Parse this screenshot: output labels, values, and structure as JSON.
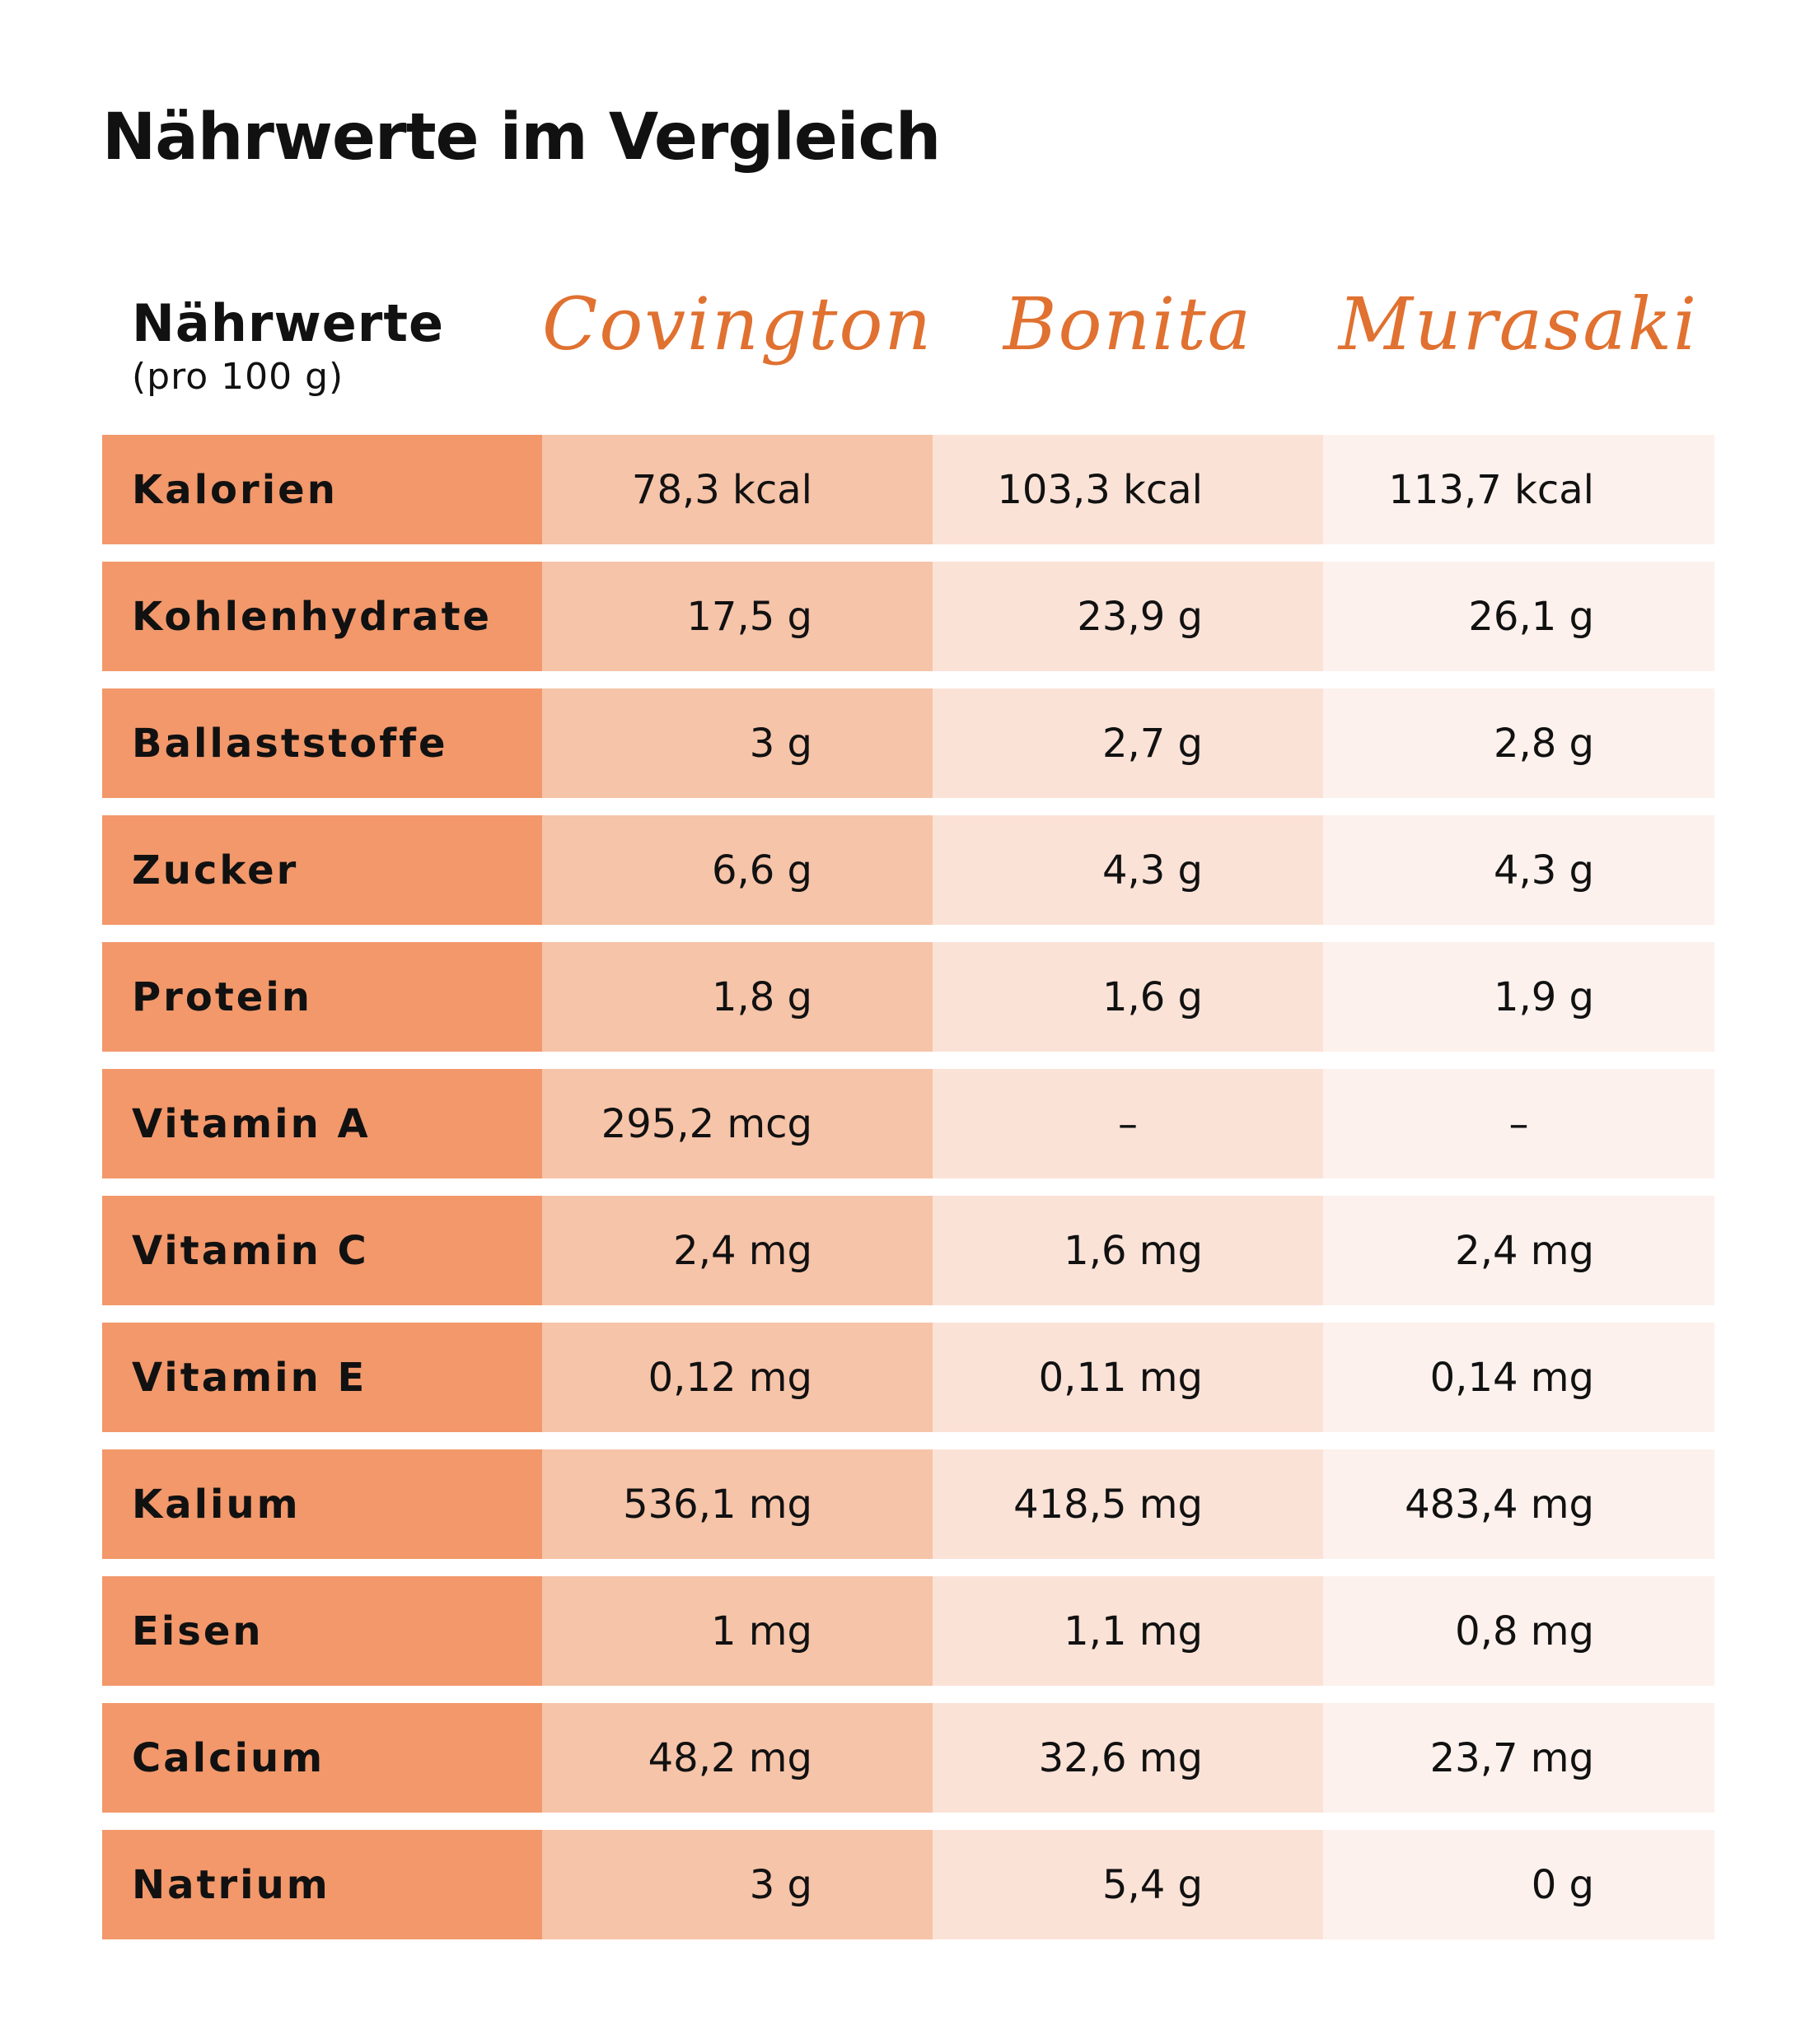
{
  "title": "Nährwerte im Vergleich",
  "header": {
    "label": "Nährwerte",
    "sublabel": "(pro 100 g)",
    "varieties": [
      "Covington",
      "Bonita",
      "Murasaki"
    ]
  },
  "rows": [
    {
      "name": "Kalorien",
      "values": [
        "78,3 kcal",
        "103,3 kcal",
        "113,7 kcal"
      ]
    },
    {
      "name": "Kohlenhydrate",
      "values": [
        "17,5 g",
        "23,9 g",
        "26,1 g"
      ]
    },
    {
      "name": "Ballaststoffe",
      "values": [
        "3 g",
        "2,7 g",
        "2,8 g"
      ]
    },
    {
      "name": "Zucker",
      "values": [
        "6,6 g",
        "4,3 g",
        "4,3 g"
      ]
    },
    {
      "name": "Protein",
      "values": [
        "1,8 g",
        "1,6 g",
        "1,9 g"
      ]
    },
    {
      "name": "Vitamin A",
      "values": [
        "295,2 mcg",
        "–",
        "–"
      ]
    },
    {
      "name": "Vitamin C",
      "values": [
        "2,4 mg",
        "1,6 mg",
        "2,4 mg"
      ]
    },
    {
      "name": "Vitamin E",
      "values": [
        "0,12 mg",
        "0,11 mg",
        "0,14 mg"
      ]
    },
    {
      "name": "Kalium",
      "values": [
        "536,1 mg",
        "418,5 mg",
        "483,4 mg"
      ]
    },
    {
      "name": "Eisen",
      "values": [
        "1 mg",
        "1,1 mg",
        "0,8 mg"
      ]
    },
    {
      "name": "Calcium",
      "values": [
        "48,2 mg",
        "32,6 mg",
        "23,7 mg"
      ]
    },
    {
      "name": "Natrium",
      "values": [
        "3 g",
        "5,4 g",
        "0 g"
      ]
    }
  ],
  "colors": {
    "accent": "#e07130",
    "label_column": "#f2986b",
    "column_1": "#f6c4a9",
    "column_2": "#fbe2d7",
    "column_3": "#fcf1ec"
  }
}
